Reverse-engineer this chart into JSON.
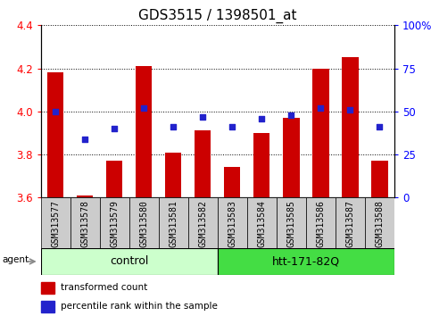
{
  "title": "GDS3515 / 1398501_at",
  "samples": [
    "GSM313577",
    "GSM313578",
    "GSM313579",
    "GSM313580",
    "GSM313581",
    "GSM313582",
    "GSM313583",
    "GSM313584",
    "GSM313585",
    "GSM313586",
    "GSM313587",
    "GSM313588"
  ],
  "transformed_count": [
    4.18,
    3.61,
    3.77,
    4.21,
    3.81,
    3.91,
    3.74,
    3.9,
    3.97,
    4.2,
    4.25,
    3.77
  ],
  "percentile_rank": [
    50,
    34,
    40,
    52,
    41,
    47,
    41,
    46,
    48,
    52,
    51,
    41
  ],
  "ylim_left": [
    3.6,
    4.4
  ],
  "ylim_right": [
    0,
    100
  ],
  "yticks_left": [
    3.6,
    3.8,
    4.0,
    4.2,
    4.4
  ],
  "yticks_right": [
    0,
    25,
    50,
    75,
    100
  ],
  "ytick_labels_right": [
    "0",
    "25",
    "50",
    "75",
    "100%"
  ],
  "bar_color": "#cc0000",
  "dot_color": "#2222cc",
  "bar_bottom": 3.6,
  "control_color": "#ccffcc",
  "htt_color": "#44dd44",
  "sample_bg_color": "#cccccc",
  "agent_label": "agent",
  "legend_bar_label": "transformed count",
  "legend_dot_label": "percentile rank within the sample",
  "title_fontsize": 11,
  "tick_fontsize": 8.5,
  "sample_fontsize": 7,
  "group_fontsize": 9,
  "bar_width": 0.55
}
